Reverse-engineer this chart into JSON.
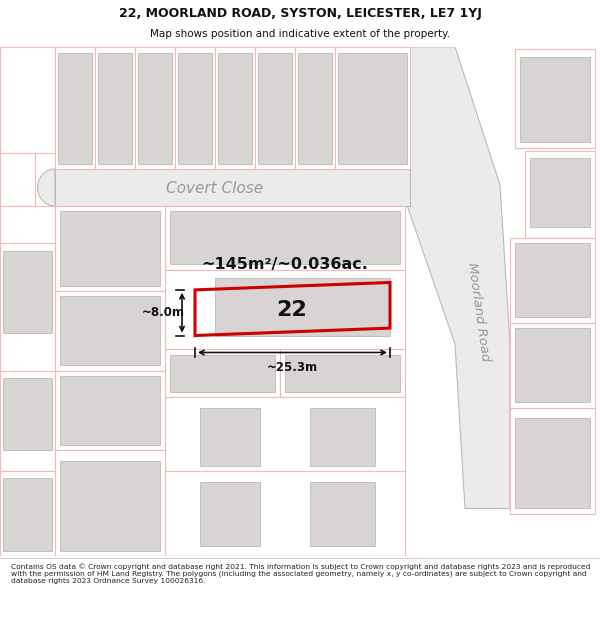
{
  "title_line1": "22, MOORLAND ROAD, SYSTON, LEICESTER, LE7 1YJ",
  "title_line2": "Map shows position and indicative extent of the property.",
  "footer_text": "Contains OS data © Crown copyright and database right 2021. This information is subject to Crown copyright and database rights 2023 and is reproduced with the permission of HM Land Registry. The polygons (including the associated geometry, namely x, y co-ordinates) are subject to Crown copyright and database rights 2023 Ordnance Survey 100026316.",
  "area_label": "~145m²/~0.036ac.",
  "number_label": "22",
  "width_label": "~25.3m",
  "height_label": "~8.0m",
  "street_label_moorland": "Moorland Road",
  "street_label_covert": "Covert Close",
  "map_bg": "#ffffff",
  "road_fill": "#e8e8e8",
  "road_stroke": "#b8b8b8",
  "building_fill": "#d8d8d8",
  "building_stroke": "#b8b8b8",
  "plot_outline_color": "#f5b8b8",
  "plot_line_color": "#cc0000",
  "dim_line_color": "#111111",
  "text_dark": "#111111",
  "text_gray": "#b0b0b0"
}
